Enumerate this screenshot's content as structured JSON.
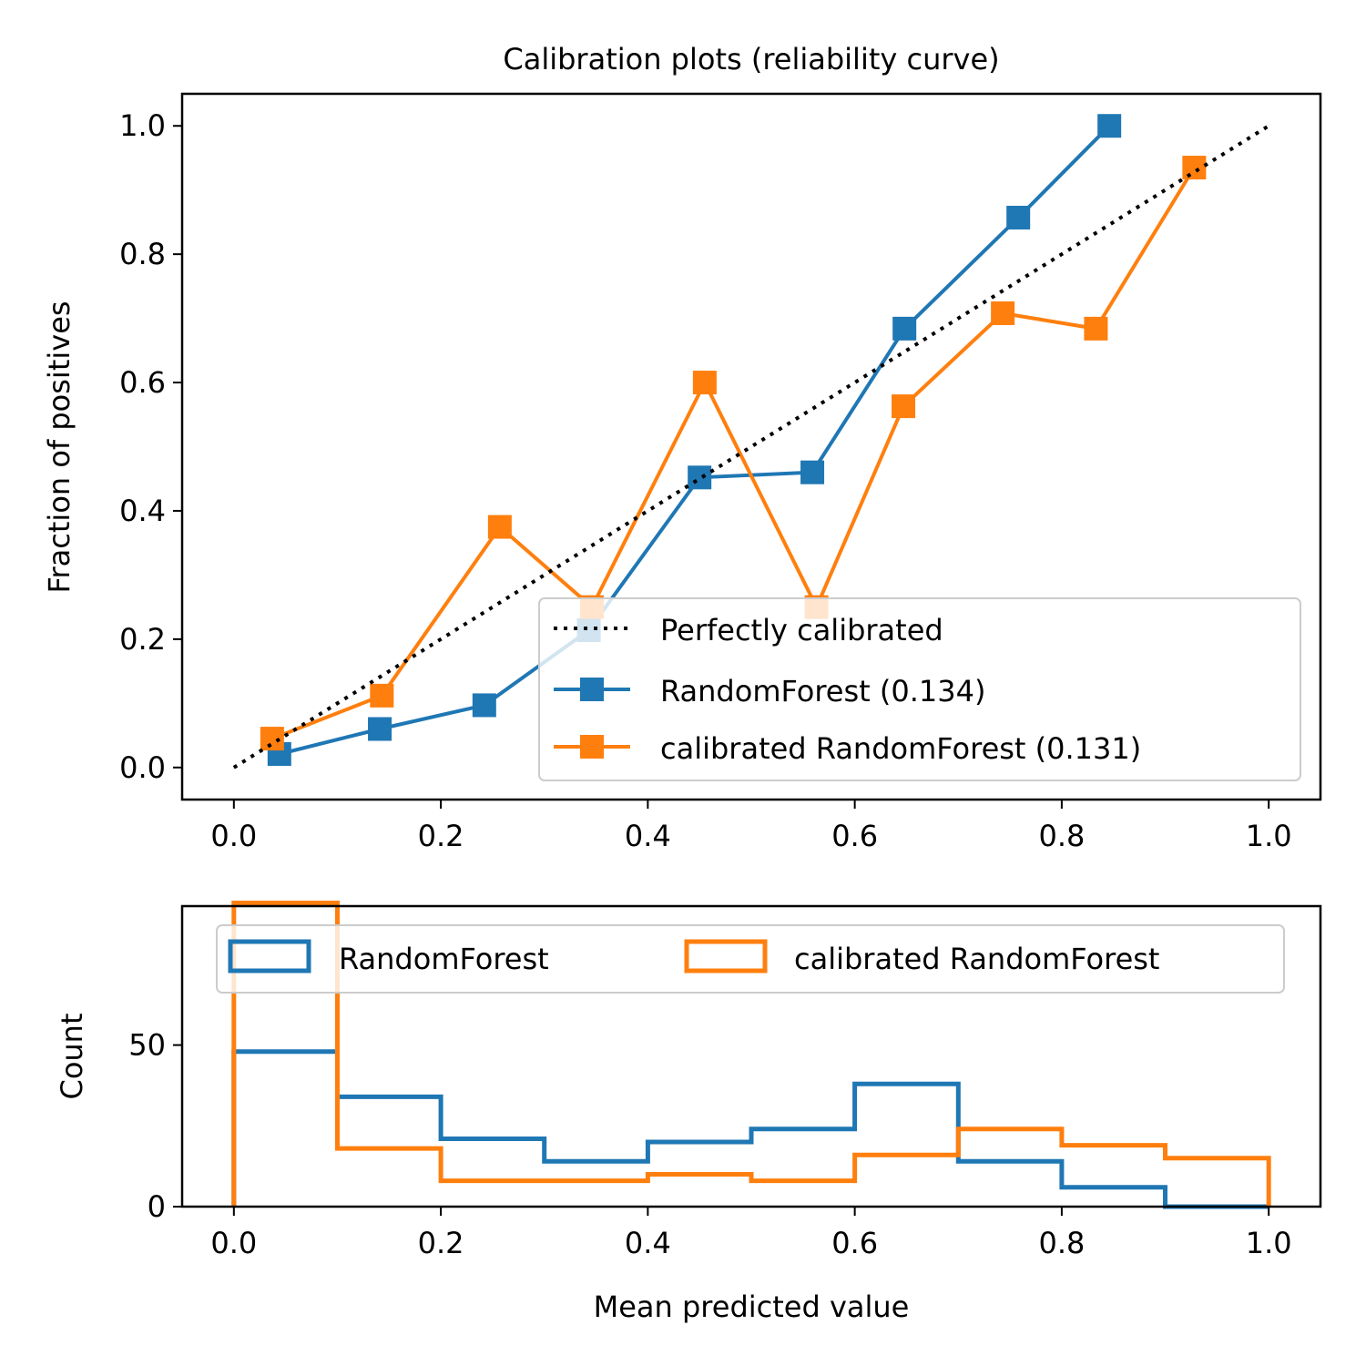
{
  "chart_data": [
    {
      "type": "line",
      "title": "Calibration plots  (reliability curve)",
      "xlabel": "",
      "ylabel": "Fraction of positives",
      "xlim": [
        -0.05,
        1.05
      ],
      "ylim": [
        -0.05,
        1.05
      ],
      "xticks": [
        0.0,
        0.2,
        0.4,
        0.6,
        0.8,
        1.0
      ],
      "yticks": [
        0.0,
        0.2,
        0.4,
        0.6,
        0.8,
        1.0
      ],
      "xtick_labels": [
        "0.0",
        "0.2",
        "0.4",
        "0.6",
        "0.8",
        "1.0"
      ],
      "ytick_labels": [
        "0.0",
        "0.2",
        "0.4",
        "0.6",
        "0.8",
        "1.0"
      ],
      "grid": false,
      "legend_position": "lower-right",
      "series": [
        {
          "name": "Perfectly calibrated",
          "color": "#000000",
          "style": "dotted",
          "marker": "none",
          "x": [
            0.0,
            1.0
          ],
          "y": [
            0.0,
            1.0
          ]
        },
        {
          "name": "RandomForest (0.134)",
          "color": "#1f77b4",
          "style": "solid",
          "marker": "square",
          "x": [
            0.044,
            0.141,
            0.242,
            0.343,
            0.45,
            0.559,
            0.648,
            0.758,
            0.846
          ],
          "y": [
            0.021,
            0.06,
            0.097,
            0.214,
            0.452,
            0.46,
            0.684,
            0.857,
            1.0
          ]
        },
        {
          "name": "calibrated RandomForest (0.131)",
          "color": "#ff7f0e",
          "style": "solid",
          "marker": "square",
          "x": [
            0.037,
            0.143,
            0.257,
            0.346,
            0.455,
            0.563,
            0.647,
            0.743,
            0.833,
            0.928
          ],
          "y": [
            0.045,
            0.112,
            0.375,
            0.25,
            0.6,
            0.25,
            0.563,
            0.708,
            0.684,
            0.935
          ]
        }
      ]
    },
    {
      "type": "histogram",
      "title": "",
      "xlabel": "Mean predicted value",
      "ylabel": "Count",
      "xlim": [
        -0.05,
        1.05
      ],
      "ylim": [
        0,
        93
      ],
      "xticks": [
        0.0,
        0.2,
        0.4,
        0.6,
        0.8,
        1.0
      ],
      "yticks": [
        0,
        50
      ],
      "xtick_labels": [
        "0.0",
        "0.2",
        "0.4",
        "0.6",
        "0.8",
        "1.0"
      ],
      "ytick_labels": [
        "0",
        "50"
      ],
      "grid": false,
      "legend_position": "upper-center",
      "bin_edges": [
        0.0,
        0.1,
        0.2,
        0.3,
        0.4,
        0.5,
        0.6,
        0.7,
        0.8,
        0.9,
        1.0
      ],
      "series": [
        {
          "name": "RandomForest",
          "color": "#1f77b4",
          "histtype": "step",
          "counts": [
            48,
            34,
            21,
            14,
            20,
            24,
            38,
            14,
            6,
            0
          ]
        },
        {
          "name": "calibrated RandomForest",
          "color": "#ff7f0e",
          "histtype": "step",
          "counts": [
            94,
            18,
            8,
            8,
            10,
            8,
            16,
            24,
            19,
            15
          ]
        }
      ]
    }
  ]
}
